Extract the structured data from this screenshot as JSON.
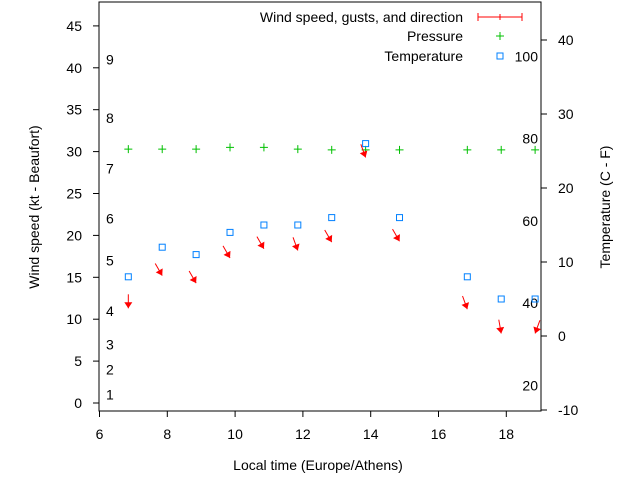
{
  "chart_data": {
    "type": "scatter",
    "xlabel": "Local time (Europe/Athens)",
    "ylabel": "Wind speed (kt - Beaufort)",
    "y2label": "Temperature (C - F)",
    "xlim": [
      6,
      19
    ],
    "ylim": [
      -1,
      48
    ],
    "y2lim": [
      -10,
      45
    ],
    "xticks": [
      6,
      8,
      10,
      12,
      14,
      16,
      18
    ],
    "yticks": [
      0,
      5,
      10,
      15,
      20,
      25,
      30,
      35,
      40,
      45
    ],
    "y2ticks": [
      -10,
      0,
      10,
      20,
      30,
      40
    ],
    "beaufort_labels": [
      {
        "label": "1",
        "kt": 1
      },
      {
        "label": "2",
        "kt": 4
      },
      {
        "label": "3",
        "kt": 7
      },
      {
        "label": "4",
        "kt": 11
      },
      {
        "label": "5",
        "kt": 17
      },
      {
        "label": "6",
        "kt": 22
      },
      {
        "label": "7",
        "kt": 28
      },
      {
        "label": "8",
        "kt": 34
      },
      {
        "label": "9",
        "kt": 41
      }
    ],
    "fahrenheit_labels": [
      "20",
      "40",
      "60",
      "80",
      "100"
    ],
    "legend": {
      "placement": "top-right",
      "entries": [
        "Wind speed, gusts, and direction",
        "Pressure",
        "Temperature"
      ]
    },
    "colors": {
      "wind": "#ff0000",
      "pressure": "#00c000",
      "temperature": "#0080ff"
    },
    "x": [
      6.85,
      7.85,
      8.85,
      9.85,
      10.85,
      11.85,
      12.85,
      13.85,
      14.85,
      16.85,
      17.85,
      18.85
    ],
    "series": [
      {
        "name": "Wind speed, gusts, and direction",
        "axis": "y",
        "values": [
          11.3,
          15.2,
          14.3,
          17.3,
          18.4,
          18.2,
          19.2,
          29.3,
          19.3,
          11.2,
          8.3,
          8.3
        ],
        "direction_deg": [
          0,
          330,
          330,
          330,
          330,
          340,
          330,
          340,
          330,
          340,
          350,
          20
        ]
      },
      {
        "name": "Pressure",
        "axis": "y",
        "values": [
          30.3,
          30.3,
          30.3,
          30.5,
          30.5,
          30.3,
          30.2,
          30.2,
          30.2,
          30.2,
          30.2,
          30.2
        ]
      },
      {
        "name": "Temperature",
        "axis": "y2",
        "values": [
          8,
          12,
          11,
          14,
          15,
          15,
          16,
          26,
          16,
          8,
          5,
          5
        ]
      }
    ]
  }
}
